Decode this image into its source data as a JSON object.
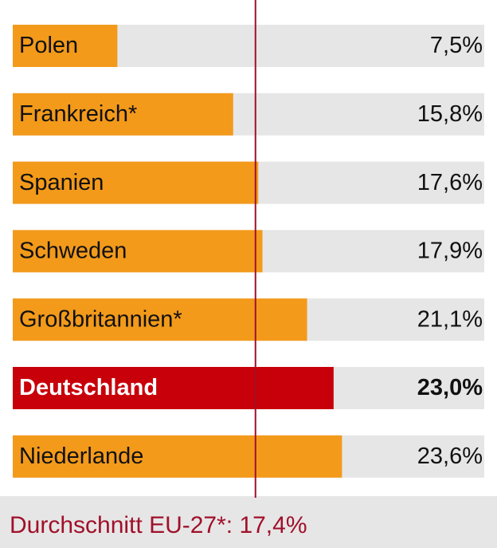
{
  "chart_data": {
    "type": "hbar",
    "categories": [
      "Polen",
      "Frankreich*",
      "Spanien",
      "Schweden",
      "Großbritannien*",
      "Deutschland",
      "Niederlande"
    ],
    "values": [
      7.5,
      15.8,
      17.6,
      17.9,
      21.1,
      23.0,
      23.6
    ],
    "value_labels": [
      "7,5%",
      "15,8%",
      "17,6%",
      "17,9%",
      "21,1%",
      "23,0%",
      "23,6%"
    ],
    "colors": [
      "#f39a1b",
      "#f39a1b",
      "#f39a1b",
      "#f39a1b",
      "#f39a1b",
      "#c8000a",
      "#f39a1b"
    ],
    "bold": [
      false,
      false,
      false,
      false,
      false,
      true,
      false
    ],
    "track_color": "#e6e6e6",
    "xlim": [
      0,
      33.8
    ],
    "reference_line": {
      "value": 17.4,
      "label": "Durchschnitt EU-27*: 17,4%",
      "color": "#a0102a"
    }
  }
}
